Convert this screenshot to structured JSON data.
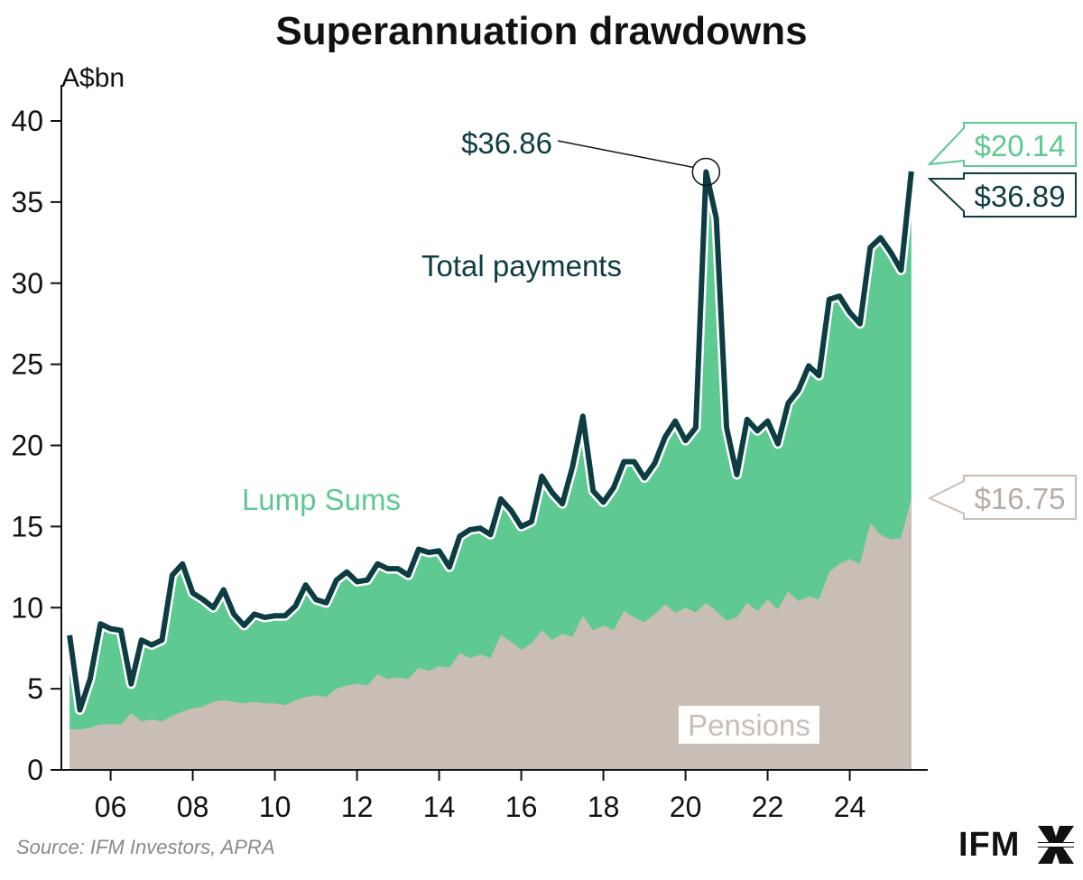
{
  "chart_data": {
    "type": "area",
    "title": "Superannuation drawdowns",
    "ylabel": "A$bn",
    "xlabel": "",
    "ylim": [
      0,
      40
    ],
    "yticks": [
      0,
      5,
      10,
      15,
      20,
      25,
      30,
      35,
      40
    ],
    "xlim": [
      2004.8,
      2025.9
    ],
    "xticks": [
      {
        "value": 2006,
        "label": "06"
      },
      {
        "value": 2008,
        "label": "08"
      },
      {
        "value": 2010,
        "label": "10"
      },
      {
        "value": 2012,
        "label": "12"
      },
      {
        "value": 2014,
        "label": "14"
      },
      {
        "value": 2016,
        "label": "16"
      },
      {
        "value": 2018,
        "label": "18"
      },
      {
        "value": 2020,
        "label": "20"
      },
      {
        "value": 2022,
        "label": "22"
      },
      {
        "value": 2024,
        "label": "24"
      }
    ],
    "x": [
      2005.0,
      2005.25,
      2005.5,
      2005.75,
      2006.0,
      2006.25,
      2006.5,
      2006.75,
      2007.0,
      2007.25,
      2007.5,
      2007.75,
      2008.0,
      2008.25,
      2008.5,
      2008.75,
      2009.0,
      2009.25,
      2009.5,
      2009.75,
      2010.0,
      2010.25,
      2010.5,
      2010.75,
      2011.0,
      2011.25,
      2011.5,
      2011.75,
      2012.0,
      2012.25,
      2012.5,
      2012.75,
      2013.0,
      2013.25,
      2013.5,
      2013.75,
      2014.0,
      2014.25,
      2014.5,
      2014.75,
      2015.0,
      2015.25,
      2015.5,
      2015.75,
      2016.0,
      2016.25,
      2016.5,
      2016.75,
      2017.0,
      2017.25,
      2017.5,
      2017.75,
      2018.0,
      2018.25,
      2018.5,
      2018.75,
      2019.0,
      2019.25,
      2019.5,
      2019.75,
      2020.0,
      2020.25,
      2020.5,
      2020.75,
      2021.0,
      2021.25,
      2021.5,
      2021.75,
      2022.0,
      2022.25,
      2022.5,
      2022.75,
      2023.0,
      2023.25,
      2023.5,
      2023.75,
      2024.0,
      2024.25,
      2024.5,
      2024.75,
      2025.0,
      2025.25,
      2025.5
    ],
    "series": [
      {
        "name": "Pensions",
        "color": "#c9beb6",
        "values": [
          2.5,
          2.5,
          2.6,
          2.8,
          2.8,
          2.8,
          3.5,
          3.0,
          3.1,
          3.0,
          3.3,
          3.6,
          3.8,
          3.9,
          4.2,
          4.3,
          4.2,
          4.1,
          4.2,
          4.1,
          4.1,
          4.0,
          4.3,
          4.5,
          4.6,
          4.5,
          5.0,
          5.2,
          5.3,
          5.2,
          5.9,
          5.6,
          5.7,
          5.6,
          6.3,
          6.1,
          6.4,
          6.3,
          7.2,
          6.9,
          7.1,
          6.9,
          8.3,
          7.9,
          7.4,
          7.8,
          8.6,
          8.0,
          8.4,
          8.2,
          9.5,
          8.6,
          8.9,
          8.6,
          9.8,
          9.4,
          9.1,
          9.6,
          10.2,
          9.7,
          10.0,
          9.7,
          10.3,
          9.8,
          9.2,
          9.4,
          10.3,
          9.8,
          10.5,
          9.9,
          11.0,
          10.4,
          10.7,
          10.5,
          12.2,
          12.7,
          13.0,
          12.7,
          15.2,
          14.5,
          14.2,
          14.3,
          16.75
        ]
      },
      {
        "name": "Lump Sums",
        "color": "#5ec991",
        "values": [
          5.8,
          1.2,
          3.0,
          6.2,
          5.9,
          5.8,
          1.8,
          5.0,
          4.6,
          5.0,
          8.7,
          9.1,
          7.1,
          6.6,
          5.8,
          6.8,
          5.4,
          4.8,
          5.4,
          5.3,
          5.4,
          5.5,
          5.8,
          6.9,
          5.9,
          5.8,
          6.7,
          7.0,
          6.3,
          6.5,
          6.8,
          6.8,
          6.7,
          6.4,
          7.3,
          7.3,
          7.1,
          6.2,
          7.2,
          7.9,
          7.8,
          7.6,
          8.4,
          8.1,
          7.6,
          7.5,
          9.5,
          9.1,
          8.0,
          10.5,
          12.3,
          8.6,
          7.6,
          8.8,
          9.2,
          9.6,
          8.9,
          9.3,
          10.3,
          11.8,
          10.3,
          11.4,
          26.56,
          24.2,
          11.9,
          8.8,
          11.3,
          11.1,
          11.0,
          10.2,
          11.6,
          13.0,
          14.2,
          13.8,
          16.8,
          16.5,
          15.2,
          14.8,
          17.0,
          18.3,
          17.7,
          16.5,
          20.14
        ]
      }
    ],
    "total": {
      "name": "Total payments",
      "color": "#0d3d42",
      "values": [
        8.3,
        3.7,
        5.6,
        9.0,
        8.7,
        8.6,
        5.3,
        8.0,
        7.7,
        8.0,
        12.0,
        12.7,
        10.9,
        10.5,
        10.0,
        11.1,
        9.6,
        8.9,
        9.6,
        9.4,
        9.5,
        9.5,
        10.1,
        11.4,
        10.5,
        10.3,
        11.7,
        12.2,
        11.6,
        11.7,
        12.7,
        12.4,
        12.4,
        12.0,
        13.6,
        13.4,
        13.5,
        12.5,
        14.4,
        14.8,
        14.9,
        14.5,
        16.7,
        16.0,
        15.0,
        15.3,
        18.1,
        17.1,
        16.4,
        18.7,
        21.8,
        17.2,
        16.5,
        17.4,
        19.0,
        19.0,
        18.0,
        18.9,
        20.5,
        21.5,
        20.3,
        21.1,
        36.86,
        34.0,
        21.1,
        18.2,
        21.6,
        20.9,
        21.5,
        20.1,
        22.6,
        23.4,
        24.9,
        24.3,
        29.0,
        29.2,
        28.2,
        27.5,
        32.2,
        32.8,
        31.9,
        30.8,
        36.89
      ]
    },
    "series_labels": {
      "total": "Total payments",
      "lump": "Lump Sums",
      "pensions": "Pensions"
    },
    "annotations": {
      "peak": {
        "label": "$36.86",
        "x": 2020.5,
        "y": 36.86
      },
      "end_lump": "$20.14",
      "end_total": "$36.89",
      "end_pensions": "$16.75"
    },
    "source": "Source: IFM Investors, APRA",
    "brand": "IFM",
    "colors": {
      "total": "#0d3d42",
      "lump": "#5ec991",
      "pensions": "#c9beb6",
      "axis": "#111111"
    }
  }
}
